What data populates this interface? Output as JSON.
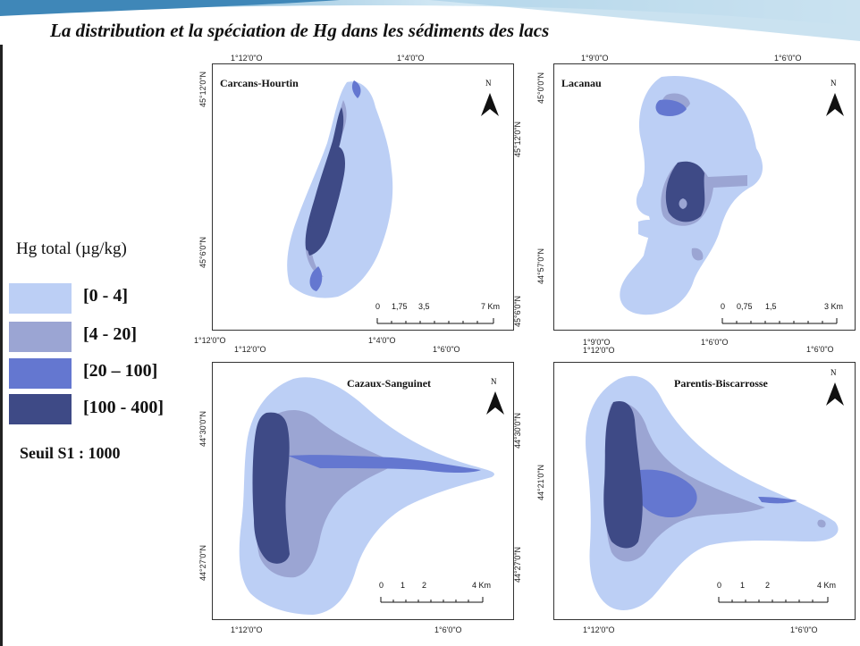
{
  "title": "La distribution et la spéciation de Hg dans les sédiments des lacs",
  "legend": {
    "title": "Hg total (µg/kg)",
    "classes": [
      {
        "label": "[0 - 4]",
        "color": "#bccff5"
      },
      {
        "label": "[4 - 20]",
        "color": "#9ba5d3"
      },
      {
        "label": "[20 – 100]",
        "color": "#6477d0"
      },
      {
        "label": "[100 - 400]",
        "color": "#3e4a86"
      }
    ],
    "threshold": "Seuil S1 : 1000"
  },
  "north_symbol": "N",
  "maps": [
    {
      "name": "Carcans-Hourtin",
      "top_ticks": [
        "1°12'0\"O",
        "1°4'0\"O"
      ],
      "bottom_ticks": [
        "1°12'0\"O",
        "1°4'0\"O"
      ],
      "left_ticks": [
        "45°12'0\"N",
        "45°6'0\"N"
      ],
      "scale": [
        "0",
        "1,75",
        "3,5",
        "7 Km"
      ]
    },
    {
      "name": "Lacanau",
      "top_ticks": [
        "1°9'0\"O",
        "1°6'0\"O"
      ],
      "bottom_ticks": [
        "1°9'0\"O",
        "1°6'0\"O",
        "1°6'0\"O"
      ],
      "left_ticks": [
        "45°0'0\"N",
        "45°12'0\"N",
        "44°57'0\"N",
        "45°6'0\"N"
      ],
      "scale": [
        "0",
        "0,75",
        "1,5",
        "3 Km"
      ]
    },
    {
      "name": "Cazaux-Sanguinet",
      "top_ticks": [
        "1°12'0\"O",
        "1°6'0\"O"
      ],
      "bottom_ticks": [
        "1°12'0\"O",
        "1°6'0\"O"
      ],
      "left_ticks": [
        "44°30'0\"N",
        "44°27'0\"N"
      ],
      "scale": [
        "0",
        "1",
        "2",
        "4 Km"
      ]
    },
    {
      "name": "Parentis-Biscarrosse",
      "top_ticks": [
        "1°12'0\"O"
      ],
      "bottom_ticks": [
        "1°12'0\"O",
        "1°6'0\"O"
      ],
      "left_ticks": [
        "44°30'0\"N",
        "44°21'0\"N",
        "44°27'0\"N"
      ],
      "scale": [
        "0",
        "1",
        "2",
        "4 Km"
      ]
    }
  ]
}
